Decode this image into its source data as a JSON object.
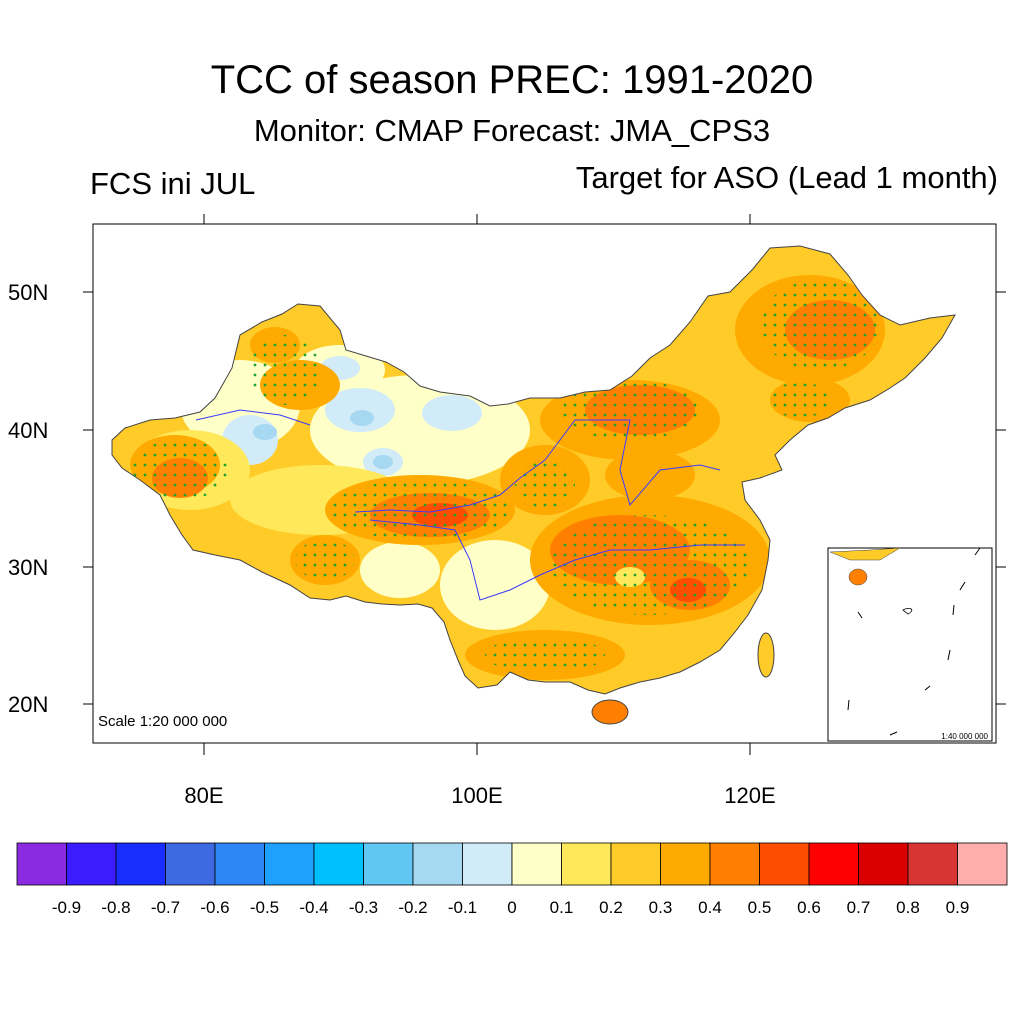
{
  "header": {
    "title": "TCC of season PREC: 1991-2020",
    "subtitle": "Monitor: CMAP   Forecast: JMA_CPS3",
    "left_label": "FCS ini JUL",
    "right_label": "Target for ASO (Lead 1 month)"
  },
  "map": {
    "scale_label": "Scale 1:20 000 000",
    "inset_scale_label": "1:40 000 000",
    "lat_ticks": [
      "50N",
      "40N",
      "30N",
      "20N"
    ],
    "lon_ticks": [
      "80E",
      "100E",
      "120E"
    ]
  },
  "colorbar": {
    "colors": [
      "#8a2be2",
      "#3c1cff",
      "#1a2dff",
      "#3d6ae0",
      "#2c86f4",
      "#1ea0ff",
      "#00c0ff",
      "#60c6f2",
      "#a6d8f2",
      "#d2ebf8",
      "#ffffc8",
      "#ffe85a",
      "#ffcb28",
      "#ffaa00",
      "#ff8000",
      "#ff4d00",
      "#ff0000",
      "#db0000",
      "#d93434",
      "#ffadad"
    ],
    "labels": [
      "-0.9",
      "-0.8",
      "-0.7",
      "-0.6",
      "-0.5",
      "-0.4",
      "-0.3",
      "-0.2",
      "-0.1",
      "0",
      "0.1",
      "0.2",
      "0.3",
      "0.4",
      "0.5",
      "0.6",
      "0.7",
      "0.8",
      "0.9"
    ]
  }
}
